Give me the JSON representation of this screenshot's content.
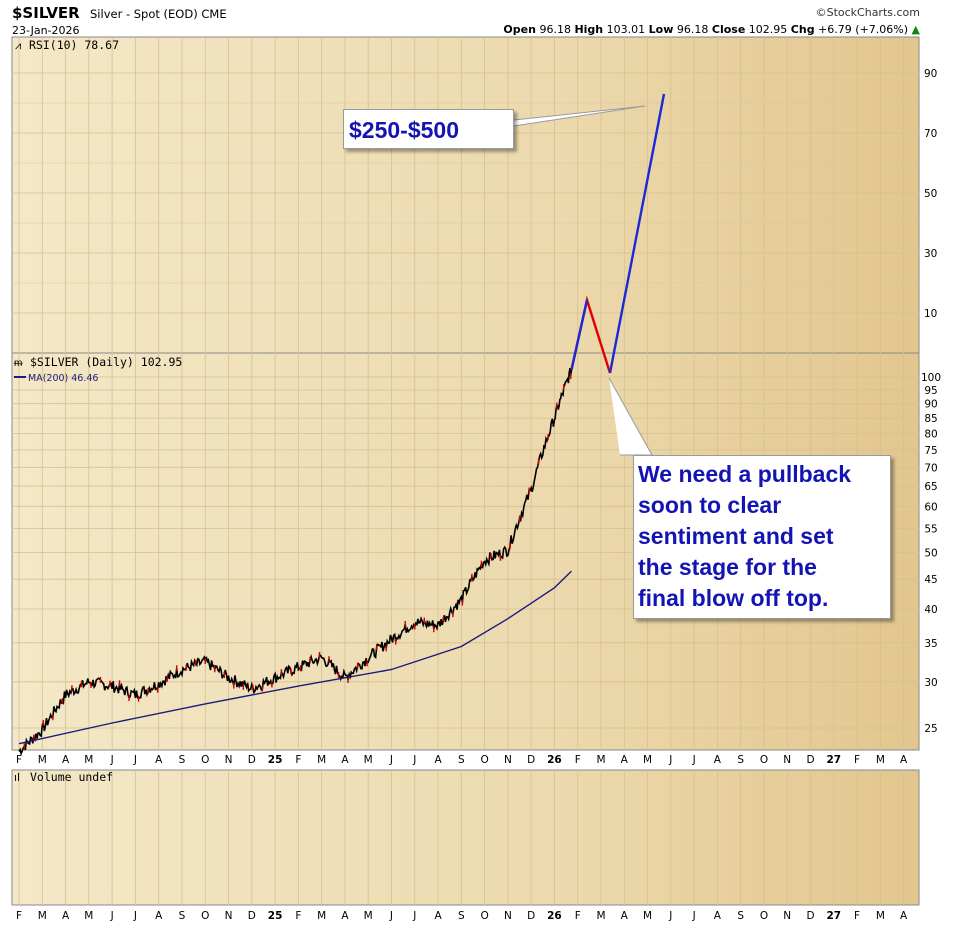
{
  "header": {
    "symbol": "$SILVER",
    "description": "Silver - Spot (EOD)",
    "exchange": "CME",
    "date": "23-Jan-2026",
    "brand": "StockCharts.com",
    "open_label": "Open",
    "open": "96.18",
    "high_label": "High",
    "high": "103.01",
    "low_label": "Low",
    "low": "96.18",
    "close_label": "Close",
    "close": "102.95",
    "chg_label": "Chg",
    "chg": "+6.79 (+7.06%)"
  },
  "colors": {
    "panel_fill": "#eddcb3",
    "price_line": "#000000",
    "ma_line": "#1c1c7c",
    "projection_down": "#e00000",
    "projection_up": "#1a2ad8",
    "annotation_text": "#1414b4"
  },
  "chart_data": {
    "type": "line",
    "panels": {
      "rsi": {
        "label": "RSI(10) 78.67",
        "ticks": [
          10,
          30,
          50,
          70,
          90
        ]
      },
      "price": {
        "label": "$SILVER (Daily) 102.95",
        "ma_label": "MA(200) 46.46",
        "scale": "log",
        "ticks": [
          25,
          30,
          35,
          40,
          45,
          50,
          55,
          60,
          65,
          70,
          75,
          80,
          85,
          90,
          95,
          100
        ],
        "ylim": [
          22,
          103
        ]
      },
      "volume": {
        "label": "Volume undef"
      }
    },
    "x_labels": [
      "F",
      "M",
      "A",
      "M",
      "J",
      "J",
      "A",
      "S",
      "O",
      "N",
      "D",
      "25",
      "F",
      "M",
      "A",
      "M",
      "J",
      "J",
      "A",
      "S",
      "O",
      "N",
      "D",
      "26",
      "F",
      "M",
      "A",
      "M",
      "J",
      "J",
      "A",
      "S",
      "O",
      "N",
      "D",
      "27",
      "F",
      "M",
      "A"
    ],
    "x_start": "2024-02",
    "series": [
      {
        "name": "$SILVER",
        "dates": [
          "2024-02",
          "2024-03",
          "2024-04",
          "2024-05",
          "2024-06",
          "2024-07",
          "2024-08",
          "2024-09",
          "2024-10",
          "2024-11",
          "2024-12",
          "2025-01",
          "2025-02",
          "2025-03",
          "2025-04",
          "2025-05",
          "2025-06",
          "2025-07",
          "2025-08",
          "2025-09",
          "2025-10",
          "2025-11",
          "2025-12",
          "2026-01",
          "2026-01-23"
        ],
        "values": [
          22.8,
          24.8,
          28.5,
          30.0,
          29.5,
          28.5,
          29.8,
          31.5,
          32.5,
          30.5,
          29.2,
          30.5,
          31.8,
          33.0,
          30.5,
          33.0,
          35.5,
          38.0,
          37.5,
          41.5,
          48.5,
          50.5,
          64.0,
          85.0,
          102.95
        ]
      },
      {
        "name": "MA(200)",
        "dates": [
          "2024-02",
          "2024-06",
          "2024-10",
          "2025-02",
          "2025-06",
          "2025-09",
          "2025-11",
          "2026-01",
          "2026-01-23"
        ],
        "values": [
          23.5,
          25.5,
          27.5,
          29.5,
          31.5,
          34.5,
          38.5,
          43.5,
          46.46
        ]
      }
    ],
    "projection": {
      "points_px_free": true,
      "segments": [
        {
          "color": "red",
          "from_date": "2026-01-23",
          "to_date": "2026-02",
          "direction": "up"
        },
        {
          "color": "red",
          "from_date": "2026-02",
          "to_date": "2026-03",
          "direction": "down"
        },
        {
          "color": "blue",
          "from_date": "2026-03",
          "to_date": "2026-05",
          "direction": "up"
        }
      ]
    },
    "annotations": [
      {
        "text": "$250-$500"
      },
      {
        "lines": [
          "We need a pullback",
          "soon to clear",
          "sentiment and set",
          "the stage for the",
          "final blow off top."
        ]
      }
    ],
    "grid": true
  }
}
